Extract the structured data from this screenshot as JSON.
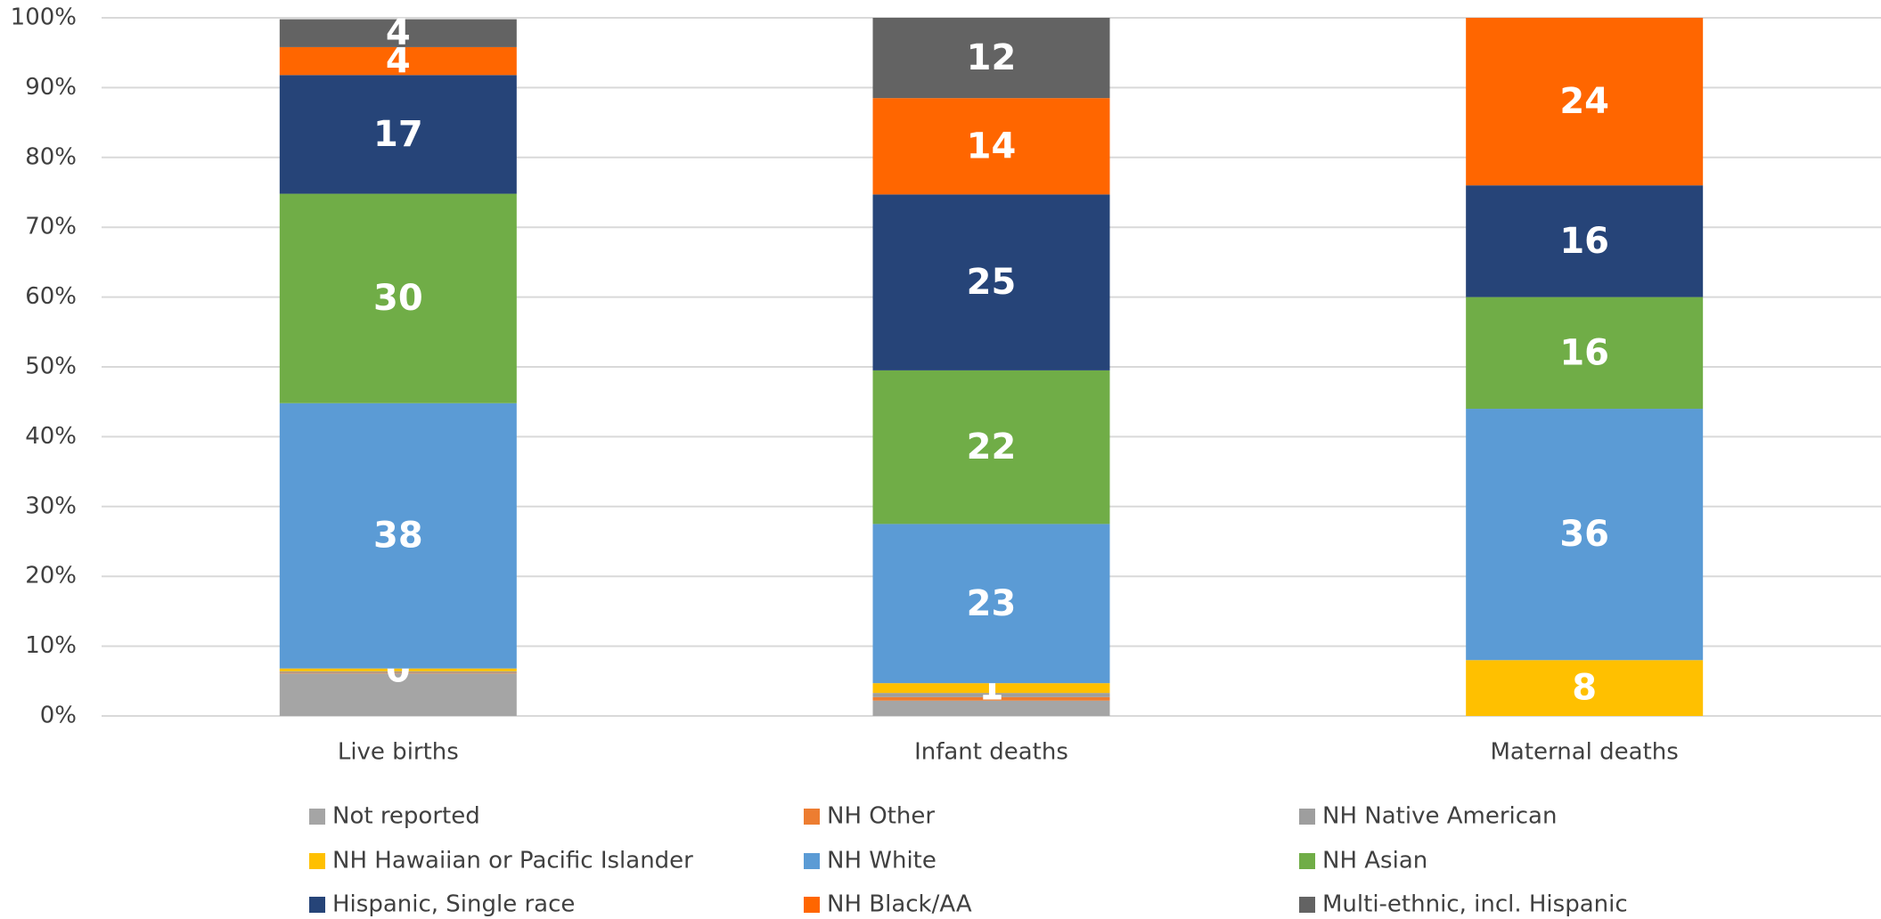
{
  "chart_data": {
    "type": "stacked_bar",
    "categories": [
      "Live births",
      "Infant deaths",
      "Maternal deaths"
    ],
    "series": [
      {
        "name": "Not reported",
        "color": "#a5a5a5",
        "values": [
          6.1,
          2.2,
          0
        ],
        "value_labels": [
          null,
          null,
          null
        ]
      },
      {
        "name": "NH Other",
        "color": "#ed7d31",
        "values": [
          0.1,
          0.5,
          0
        ],
        "value_labels": [
          null,
          null,
          null
        ]
      },
      {
        "name": "NH Native American",
        "color": "#9e9e9e",
        "values": [
          0.2,
          0.6,
          0
        ],
        "value_labels": [
          null,
          null,
          null
        ]
      },
      {
        "name": "NH Hawaiian or Pacific Islander",
        "color": "#ffc000",
        "values": [
          0.4,
          1.4,
          8
        ],
        "value_labels": [
          "0",
          "1",
          "8"
        ]
      },
      {
        "name": "NH White",
        "color": "#5b9bd5",
        "values": [
          38,
          22.8,
          36
        ],
        "value_labels": [
          "38",
          "23",
          "36"
        ]
      },
      {
        "name": "NH Asian",
        "color": "#70ad47",
        "values": [
          30,
          22,
          16
        ],
        "value_labels": [
          "30",
          "22",
          "16"
        ]
      },
      {
        "name": "Hispanic, Single race",
        "color": "#264478",
        "values": [
          17,
          25.2,
          16
        ],
        "value_labels": [
          "17",
          "25",
          "16"
        ]
      },
      {
        "name": "NH Black/AA",
        "color": "#ff6600",
        "values": [
          4,
          13.8,
          24
        ],
        "value_labels": [
          "4",
          "14",
          "24"
        ]
      },
      {
        "name": "Multi-ethnic, incl. Hispanic",
        "color": "#636363",
        "values": [
          4,
          11.5,
          0
        ],
        "value_labels": [
          "4",
          "12",
          null
        ]
      }
    ],
    "ylim": [
      0,
      100
    ],
    "yticks": [
      {
        "value": 0,
        "label": "0%"
      },
      {
        "value": 10,
        "label": "10%"
      },
      {
        "value": 20,
        "label": "20%"
      },
      {
        "value": 30,
        "label": "30%"
      },
      {
        "value": 40,
        "label": "40%"
      },
      {
        "value": 50,
        "label": "50%"
      },
      {
        "value": 60,
        "label": "60%"
      },
      {
        "value": 70,
        "label": "70%"
      },
      {
        "value": 80,
        "label": "80%"
      },
      {
        "value": 90,
        "label": "90%"
      },
      {
        "value": 100,
        "label": "100%"
      }
    ],
    "grid": true,
    "legend": "bottom"
  }
}
